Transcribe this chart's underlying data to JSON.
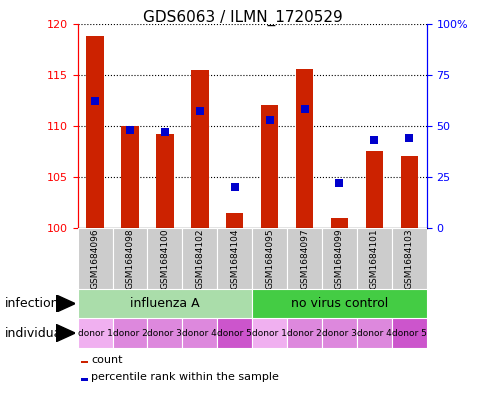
{
  "title": "GDS6063 / ILMN_1720529",
  "samples": [
    "GSM1684096",
    "GSM1684098",
    "GSM1684100",
    "GSM1684102",
    "GSM1684104",
    "GSM1684095",
    "GSM1684097",
    "GSM1684099",
    "GSM1684101",
    "GSM1684103"
  ],
  "bar_values": [
    118.8,
    110.0,
    109.2,
    115.5,
    101.5,
    112.0,
    115.6,
    101.0,
    107.5,
    107.0
  ],
  "percentile_values": [
    62,
    48,
    47,
    57,
    20,
    53,
    58,
    22,
    43,
    44
  ],
  "bar_color": "#cc2200",
  "dot_color": "#0000cc",
  "ylim_left": [
    100,
    120
  ],
  "ylim_right": [
    0,
    100
  ],
  "yticks_left": [
    100,
    105,
    110,
    115,
    120
  ],
  "ytick_labels_left": [
    "100",
    "105",
    "110",
    "115",
    "120"
  ],
  "ytick_labels_right": [
    "0",
    "25",
    "50",
    "75",
    "100%"
  ],
  "yticks_right": [
    0,
    25,
    50,
    75,
    100
  ],
  "influenza_color": "#aaddaa",
  "novirus_color": "#44cc44",
  "individual_colors": [
    "#f0b0f0",
    "#dd88dd",
    "#dd88dd",
    "#dd88dd",
    "#cc55cc",
    "#f0b0f0",
    "#dd88dd",
    "#dd88dd",
    "#dd88dd",
    "#cc55cc"
  ],
  "sample_bg_color": "#cccccc",
  "bar_width": 0.5,
  "dot_size": 35,
  "infection_label": "infection",
  "individual_label": "individual",
  "legend_count_label": "count",
  "legend_percentile_label": "percentile rank within the sample",
  "title_fontsize": 11,
  "tick_fontsize": 8,
  "label_fontsize": 9,
  "sample_fontsize": 6.5,
  "donor_fontsize": 6.5
}
